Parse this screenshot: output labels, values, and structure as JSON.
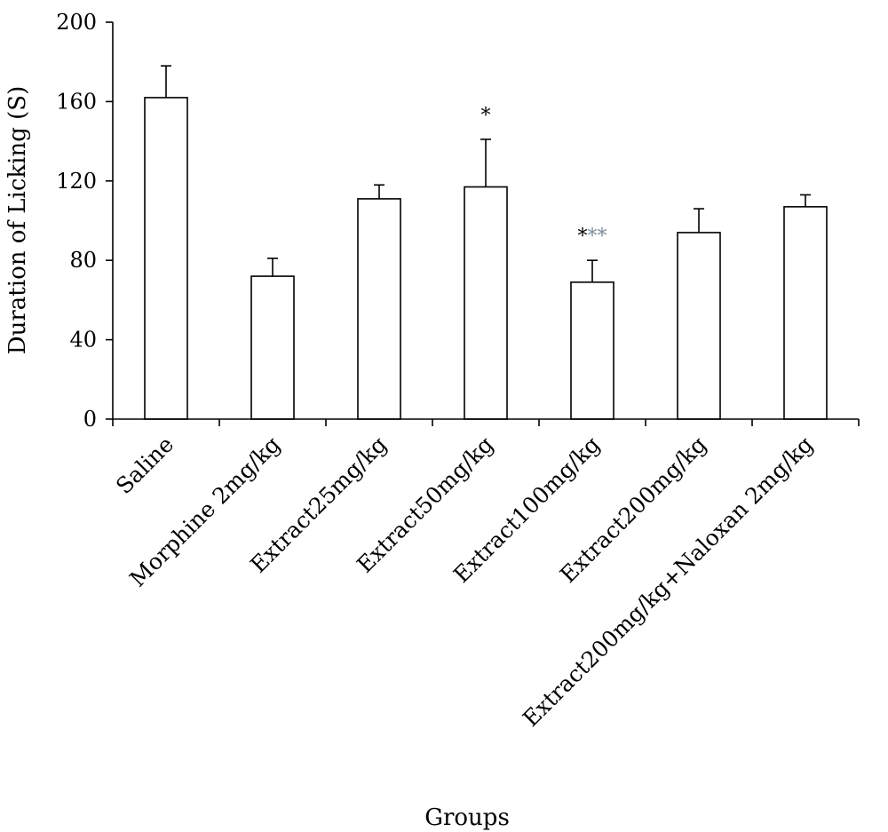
{
  "chart_data": {
    "type": "bar",
    "xlabel": "Groups",
    "ylabel": "Duration of Licking (S)",
    "ylim": [
      0,
      200
    ],
    "yticks": [
      0,
      40,
      80,
      120,
      160,
      200
    ],
    "grid": false,
    "legend": "none",
    "categories": [
      "Saline",
      "Morphine 2mg/kg",
      "Extract25mg/kg",
      "Extract50mg/kg",
      "Extract100mg/kg",
      "Extract200mg/kg",
      "Extract200mg/kg+Naloxan 2mg/kg"
    ],
    "values": [
      162,
      72,
      111,
      117,
      69,
      94,
      107
    ],
    "errors": [
      16,
      9,
      7,
      24,
      11,
      12,
      6
    ],
    "annotations": [
      {
        "category_index": 3,
        "segments": [
          {
            "text": "*",
            "color": "#000000"
          }
        ]
      },
      {
        "category_index": 4,
        "segments": [
          {
            "text": "*",
            "color": "#000000"
          },
          {
            "text": "**",
            "color": "#7a8a9a"
          }
        ]
      }
    ],
    "colors": {
      "bar_fill": "#ffffff",
      "bar_stroke": "#000000",
      "axis": "#000000"
    }
  }
}
